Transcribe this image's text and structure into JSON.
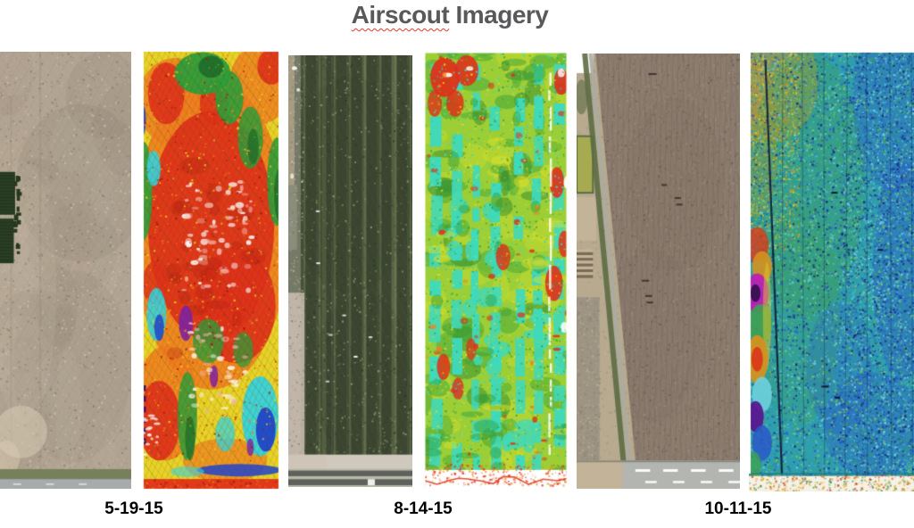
{
  "slide_title": {
    "underlined_word": "Airscout",
    "rest_word": "Imagery",
    "text_color": "#58595b",
    "spellcheck_underline_color": "#e8392e"
  },
  "background_color": "#ffffff",
  "date_label_color": "#000000",
  "date_labels": [
    "5-19-15",
    "8-14-15",
    "10-11-15"
  ],
  "panels": [
    {
      "id": "aerial-visible-5-19-15",
      "group_date": "5-19-15",
      "description": "visible-light aerial photo: bare tan field, diagonal till streaks, dark tree rows at left, grass strip and gray road at bottom",
      "palette": {
        "base": "#b2a492",
        "shadow": "#8a7e70",
        "light": "#c9bda9",
        "pale": "#d9ccb4",
        "trees": "#25381f",
        "treelight": "#4a6446",
        "grass": "#76815b",
        "road": "#a7abac",
        "white": "#ffffff"
      }
    },
    {
      "id": "thermal-map-5-19-15",
      "group_date": "5-19-15",
      "description": "thermal/stress map: red-orange core with crosshatch rows, green patches top, cyan-blue and purple zones bottom, red strip at base, white frame",
      "palette": {
        "base": "#e8d227",
        "orange": "#f07d1f",
        "red": "#e03119",
        "darkred": "#a81c0e",
        "green": "#2f9e3a",
        "darkgreen": "#1b6b2a",
        "cyan": "#38d2da",
        "blue": "#2144cb",
        "purple": "#8021a8",
        "darkpurple": "#45105e",
        "pink": "#f2b4ac",
        "white": "#ffffff"
      }
    },
    {
      "id": "aerial-visible-8-14-15",
      "group_date": "8-14-15",
      "description": "visible-light aerial photo: dark green striped crop canopy, pale access strip at left, dashed gray road at bottom",
      "palette": {
        "base": "#46513a",
        "dark": "#313c28",
        "light": "#8d9768",
        "tan": "#a69c84",
        "pale": "#cec0b4",
        "paleband": "#cfc8bc",
        "roaddark": "#5f625c",
        "white": "#ffffff"
      }
    },
    {
      "id": "ndvi-map-8-14-15",
      "group_date": "8-14-15",
      "description": "NDVI map: cyan and green vertical strips with yellow mottling, red stress blobs at top-left and right edge, white channel near right, red speckled base, white frame",
      "palette": {
        "base": "#9cce36",
        "yellow": "#dce02a",
        "green": "#2f9e3a",
        "darkgreen": "#1f7a2c",
        "cyan": "#3fd9bc",
        "red": "#e03018",
        "orange": "#f08020",
        "white": "#ffffff"
      }
    },
    {
      "id": "aerial-visible-10-11-15",
      "group_date": "10-11-15",
      "description": "visible-light aerial photo: brown harvested/tilled field with diagonal grass waterway and road at left, small plots beyond, dashed road at bottom",
      "palette": {
        "tan": "#b7aa8f",
        "tanrow": "#c3b499",
        "field": "#8b7b6d",
        "fielddark": "#6f6156",
        "rows": "#7b6a55",
        "green": "#5d6b44",
        "brightfield": "#a6ab52",
        "gray": "#9d9484",
        "road": "#a9aca4",
        "roadband": "#b3b5b0",
        "dark": "#3f372f",
        "white": "#ffffff"
      }
    },
    {
      "id": "ndvi-map-10-11-15",
      "group_date": "10-11-15",
      "description": "speckled NDVI map: teal-green noise field turning blue at right, orange wash top-left, rainbow edge artifacts along lower left, dark boundary line, pale speckled base",
      "palette": {
        "base": "#2f9fae",
        "green": "#3fa050",
        "brightgreen": "#7ec86a",
        "blue": "#2a58c8",
        "navy": "#162d7a",
        "lightcyan": "#6fd0dc",
        "orange": "#d4921f",
        "yellow": "#e4c62e",
        "red": "#d93a1a",
        "magenta": "#c018b8",
        "purple": "#5a1090",
        "dark": "#0c1838",
        "white": "#f5f1e7"
      }
    }
  ]
}
